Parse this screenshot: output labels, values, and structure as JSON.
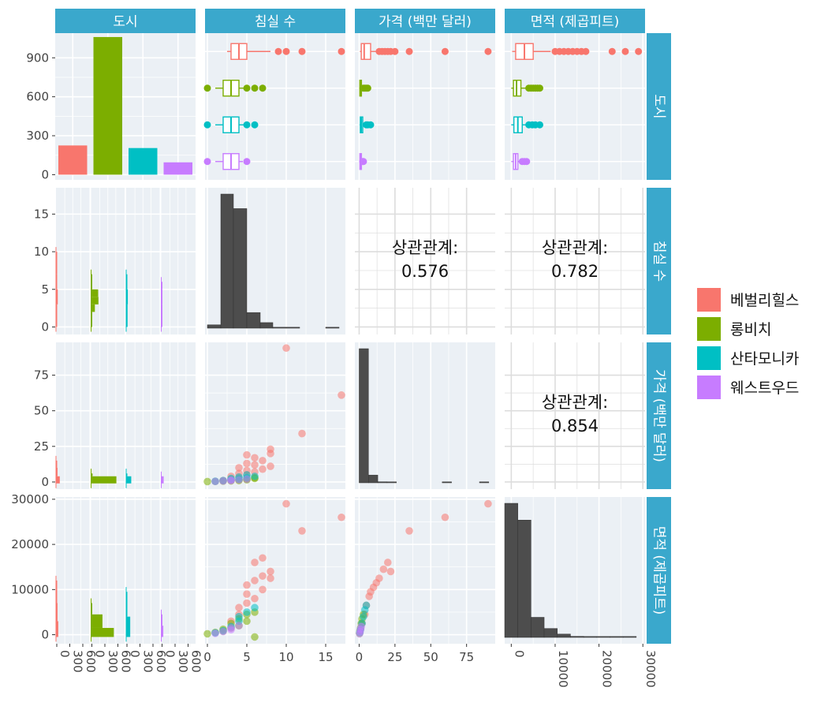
{
  "chart_data": {
    "type": "scatter",
    "variables": [
      "도시",
      "침실 수",
      "가격 (백만 달러)",
      "면적 (제곱피트)"
    ],
    "cities": [
      "베벌리힐스",
      "롱비치",
      "산타모니카",
      "웨스트우드"
    ],
    "colors": {
      "베벌리힐스": "#F8766D",
      "롱비치": "#7CAE00",
      "산타모니카": "#00BFC4",
      "웨스트우드": "#C77CFF"
    },
    "city_counts": [
      225,
      1060,
      205,
      95
    ],
    "city_count_ticks": [
      0,
      300,
      600,
      900
    ],
    "bottom_city_ticks": [
      "0",
      "300",
      "600"
    ],
    "correlations": [
      {
        "row": "침실 수",
        "col": "가격 (백만 달러)",
        "label": "상관관계:",
        "value": "0.576"
      },
      {
        "row": "침실 수",
        "col": "면적 (제곱피트)",
        "label": "상관관계:",
        "value": "0.782"
      },
      {
        "row": "가격 (백만 달러)",
        "col": "면적 (제곱피트)",
        "label": "상관관계:",
        "value": "0.854"
      }
    ],
    "axis_ticks": {
      "bedrooms": [
        0,
        5,
        10,
        15
      ],
      "bedrooms_y": [
        0,
        5,
        10,
        15
      ],
      "price": [
        0,
        25,
        50,
        75
      ],
      "price_y": [
        0,
        25,
        50,
        75
      ],
      "area": [
        0,
        10000,
        20000,
        30000
      ],
      "area_y": [
        0,
        10000,
        20000,
        30000
      ]
    },
    "bedroom_hist": [
      {
        "x0": 0,
        "x1": 1.7,
        "count": 30
      },
      {
        "x0": 1.7,
        "x1": 3.3,
        "count": 1200
      },
      {
        "x0": 3.3,
        "x1": 5.0,
        "count": 1070
      },
      {
        "x0": 5.0,
        "x1": 6.7,
        "count": 140
      },
      {
        "x0": 6.7,
        "x1": 8.3,
        "count": 50
      },
      {
        "x0": 8.3,
        "x1": 10.0,
        "count": 8
      },
      {
        "x0": 10.0,
        "x1": 11.7,
        "count": 3
      },
      {
        "x0": 15.0,
        "x1": 16.7,
        "count": 2
      }
    ],
    "price_hist": [
      {
        "x0": 0,
        "x1": 6.5,
        "count": 1560
      },
      {
        "x0": 6.5,
        "x1": 13,
        "count": 90
      },
      {
        "x0": 13,
        "x1": 19.5,
        "count": 12
      },
      {
        "x0": 19.5,
        "x1": 26,
        "count": 4
      },
      {
        "x0": 58,
        "x1": 64.5,
        "count": 2
      },
      {
        "x0": 84,
        "x1": 90.5,
        "count": 1
      }
    ],
    "area_hist": [
      {
        "x0": -1500,
        "x1": 1500,
        "count": 1200
      },
      {
        "x0": 1500,
        "x1": 4500,
        "count": 1050
      },
      {
        "x0": 4500,
        "x1": 7500,
        "count": 180
      },
      {
        "x0": 7500,
        "x1": 10500,
        "count": 80
      },
      {
        "x0": 10500,
        "x1": 13500,
        "count": 30
      },
      {
        "x0": 13500,
        "x1": 16500,
        "count": 10
      },
      {
        "x0": 16500,
        "x1": 19500,
        "count": 5
      },
      {
        "x0": 19500,
        "x1": 22500,
        "count": 3
      },
      {
        "x0": 22500,
        "x1": 25500,
        "count": 2
      },
      {
        "x0": 25500,
        "x1": 28500,
        "count": 2
      }
    ],
    "boxplots": {
      "bedrooms": [
        {
          "city": "베벌리힐스",
          "min": 2.5,
          "q1": 3,
          "median": 4,
          "q3": 5,
          "max": 8,
          "outliers": [
            9,
            10,
            12,
            17
          ]
        },
        {
          "city": "롱비치",
          "min": 1,
          "q1": 2,
          "median": 3,
          "q3": 4,
          "max": 5,
          "outliers": [
            0,
            5,
            6,
            7
          ]
        },
        {
          "city": "산타모니카",
          "min": 1,
          "q1": 2,
          "median": 3,
          "q3": 4,
          "max": 5,
          "outliers": [
            0,
            5,
            6
          ]
        },
        {
          "city": "웨스트우드",
          "min": 1,
          "q1": 2,
          "median": 3,
          "q3": 4,
          "max": 4.5,
          "outliers": [
            0,
            5
          ]
        }
      ],
      "price": [
        {
          "city": "베벌리힐스",
          "min": 0.5,
          "q1": 1.5,
          "median": 3.5,
          "q3": 8,
          "max": 12,
          "outliers": [
            14,
            16,
            18,
            20,
            22,
            25,
            35,
            60,
            90
          ]
        },
        {
          "city": "롱비치",
          "min": 0.2,
          "q1": 0.5,
          "median": 0.8,
          "q3": 1.5,
          "max": 2.5,
          "outliers": [
            3,
            4,
            5,
            6
          ]
        },
        {
          "city": "산타모니카",
          "min": 0.3,
          "q1": 0.8,
          "median": 1.5,
          "q3": 2.5,
          "max": 4,
          "outliers": [
            5,
            6,
            8
          ]
        },
        {
          "city": "웨스트우드",
          "min": 0.2,
          "q1": 0.5,
          "median": 1,
          "q3": 1.5,
          "max": 2,
          "outliers": [
            2.5,
            3
          ]
        }
      ],
      "area": [
        {
          "city": "베벌리힐스",
          "min": 200,
          "q1": 1000,
          "median": 3000,
          "q3": 5000,
          "max": 9000,
          "outliers": [
            10000,
            11000,
            12000,
            13000,
            14000,
            15000,
            16000,
            17000,
            23000,
            26000,
            29000
          ]
        },
        {
          "city": "롱비치",
          "min": 0,
          "q1": 500,
          "median": 1200,
          "q3": 2200,
          "max": 3500,
          "outliers": [
            4000,
            4500,
            5000,
            5500,
            6000,
            6500
          ]
        },
        {
          "city": "산타모니카",
          "min": 0,
          "q1": 600,
          "median": 1500,
          "q3": 2500,
          "max": 3500,
          "outliers": [
            4000,
            4800,
            5500,
            6500
          ]
        },
        {
          "city": "웨스트우드",
          "min": 0,
          "q1": 500,
          "median": 1000,
          "q3": 1500,
          "max": 2000,
          "outliers": [
            2500,
            3000,
            3500
          ]
        }
      ]
    },
    "faceted_hist": {
      "bedrooms": [
        {
          "city": "베벌리힐스",
          "bins": [
            {
              "y0": 0,
              "y1": 3,
              "count": 35
            },
            {
              "y0": 3,
              "y1": 5,
              "count": 70
            },
            {
              "y0": 5,
              "y1": 7,
              "count": 45
            },
            {
              "y0": 7,
              "y1": 10,
              "count": 12
            }
          ]
        },
        {
          "city": "롱비치",
          "bins": [
            {
              "y0": 0,
              "y1": 2,
              "count": 25
            },
            {
              "y0": 2,
              "y1": 3,
              "count": 150
            },
            {
              "y0": 3,
              "y1": 4,
              "count": 290
            },
            {
              "y0": 4,
              "y1": 5,
              "count": 280
            },
            {
              "y0": 5,
              "y1": 7,
              "count": 25
            }
          ]
        },
        {
          "city": "산타모니카",
          "bins": [
            {
              "y0": 0,
              "y1": 3,
              "count": 55
            },
            {
              "y0": 3,
              "y1": 5,
              "count": 65
            },
            {
              "y0": 5,
              "y1": 7,
              "count": 20
            }
          ]
        },
        {
          "city": "웨스트우드",
          "bins": [
            {
              "y0": 0,
              "y1": 3,
              "count": 25
            },
            {
              "y0": 3,
              "y1": 5,
              "count": 30
            },
            {
              "y0": 5,
              "y1": 6,
              "count": 5
            }
          ]
        }
      ],
      "price": [
        {
          "city": "베벌리힐스",
          "bins": [
            {
              "y0": -1,
              "y1": 4,
              "count": 150
            },
            {
              "y0": 4,
              "y1": 10,
              "count": 60
            },
            {
              "y0": 10,
              "y1": 15,
              "count": 25
            }
          ]
        },
        {
          "city": "롱비치",
          "bins": [
            {
              "y0": -1,
              "y1": 4,
              "count": 1000
            },
            {
              "y0": 4,
              "y1": 6,
              "count": 60
            }
          ]
        },
        {
          "city": "산타모니카",
          "bins": [
            {
              "y0": -1,
              "y1": 4,
              "count": 200
            },
            {
              "y0": 4,
              "y1": 6,
              "count": 30
            }
          ]
        },
        {
          "city": "웨스트우드",
          "bins": [
            {
              "y0": -1,
              "y1": 4,
              "count": 95
            }
          ]
        }
      ],
      "area": [
        {
          "city": "베벌리힐스",
          "bins": [
            {
              "y0": -500,
              "y1": 3000,
              "count": 90
            },
            {
              "y0": 3000,
              "y1": 7000,
              "count": 60
            },
            {
              "y0": 7000,
              "y1": 12000,
              "count": 25
            }
          ]
        },
        {
          "city": "롱비치",
          "bins": [
            {
              "y0": -500,
              "y1": 1500,
              "count": 900
            },
            {
              "y0": 1500,
              "y1": 4500,
              "count": 450
            },
            {
              "y0": 4500,
              "y1": 7000,
              "count": 40
            }
          ]
        },
        {
          "city": "산타모니카",
          "bins": [
            {
              "y0": -500,
              "y1": 4000,
              "count": 160
            },
            {
              "y0": 4000,
              "y1": 9500,
              "count": 30
            }
          ]
        },
        {
          "city": "웨스트우드",
          "bins": [
            {
              "y0": -500,
              "y1": 2000,
              "count": 80
            },
            {
              "y0": 2000,
              "y1": 4500,
              "count": 20
            }
          ]
        }
      ]
    },
    "scatter_bed_price": [
      {
        "city": "베벌리힐스",
        "points": [
          [
            2,
            1
          ],
          [
            3,
            2
          ],
          [
            3,
            4
          ],
          [
            4,
            3
          ],
          [
            4,
            6
          ],
          [
            4,
            10
          ],
          [
            5,
            5
          ],
          [
            5,
            8
          ],
          [
            5,
            13
          ],
          [
            5,
            19
          ],
          [
            6,
            7
          ],
          [
            6,
            12
          ],
          [
            6,
            17
          ],
          [
            7,
            9
          ],
          [
            7,
            15
          ],
          [
            8,
            23
          ],
          [
            8,
            20
          ],
          [
            8,
            11
          ],
          [
            10,
            94
          ],
          [
            12,
            34
          ],
          [
            17,
            61
          ]
        ]
      },
      {
        "city": "롱비치",
        "points": [
          [
            0,
            0.3
          ],
          [
            1,
            0.4
          ],
          [
            2,
            0.6
          ],
          [
            3,
            0.8
          ],
          [
            3,
            1.2
          ],
          [
            4,
            1
          ],
          [
            4,
            1.6
          ],
          [
            5,
            1.5
          ],
          [
            5,
            2
          ],
          [
            6,
            2.5
          ],
          [
            6,
            3
          ]
        ]
      },
      {
        "city": "산타모니카",
        "points": [
          [
            1,
            0.5
          ],
          [
            2,
            1
          ],
          [
            3,
            1.5
          ],
          [
            3,
            2.5
          ],
          [
            4,
            2
          ],
          [
            4,
            3.5
          ],
          [
            5,
            3
          ],
          [
            5,
            5
          ],
          [
            6,
            4
          ]
        ]
      },
      {
        "city": "웨스트우드",
        "points": [
          [
            1,
            0.4
          ],
          [
            2,
            0.7
          ],
          [
            3,
            1
          ],
          [
            3,
            1.3
          ],
          [
            4,
            1.5
          ],
          [
            5,
            2
          ]
        ]
      }
    ],
    "scatter_bed_area": [
      {
        "city": "베벌리힐스",
        "points": [
          [
            3,
            3000
          ],
          [
            4,
            4500
          ],
          [
            4,
            6000
          ],
          [
            5,
            7000
          ],
          [
            5,
            9000
          ],
          [
            5,
            11000
          ],
          [
            6,
            8000
          ],
          [
            6,
            12000
          ],
          [
            6,
            16000
          ],
          [
            7,
            10000
          ],
          [
            7,
            13000
          ],
          [
            7,
            17000
          ],
          [
            8,
            12500
          ],
          [
            8,
            14000
          ],
          [
            10,
            29000
          ],
          [
            12,
            23000
          ],
          [
            17,
            26000
          ]
        ]
      },
      {
        "city": "롱비치",
        "points": [
          [
            0,
            200
          ],
          [
            1,
            500
          ],
          [
            2,
            800
          ],
          [
            2,
            1200
          ],
          [
            3,
            1500
          ],
          [
            3,
            2500
          ],
          [
            4,
            2000
          ],
          [
            4,
            3500
          ],
          [
            5,
            3000
          ],
          [
            5,
            4500
          ],
          [
            6,
            5000
          ],
          [
            6,
            -500
          ]
        ]
      },
      {
        "city": "산타모니카",
        "points": [
          [
            1,
            400
          ],
          [
            2,
            900
          ],
          [
            3,
            1800
          ],
          [
            4,
            3000
          ],
          [
            4,
            4000
          ],
          [
            5,
            5000
          ],
          [
            6,
            6000
          ]
        ]
      },
      {
        "city": "웨스트우드",
        "points": [
          [
            1,
            300
          ],
          [
            2,
            700
          ],
          [
            3,
            1100
          ],
          [
            3,
            1500
          ],
          [
            4,
            2000
          ]
        ]
      }
    ],
    "scatter_price_area": [
      {
        "city": "베벌리힐스",
        "points": [
          [
            2,
            2500
          ],
          [
            4,
            4500
          ],
          [
            5,
            6500
          ],
          [
            7,
            8500
          ],
          [
            8,
            9500
          ],
          [
            10,
            10500
          ],
          [
            12,
            11500
          ],
          [
            14,
            12500
          ],
          [
            17,
            14500
          ],
          [
            20,
            16000
          ],
          [
            22,
            14000
          ],
          [
            35,
            23000
          ],
          [
            60,
            26000
          ],
          [
            90,
            29000
          ]
        ]
      },
      {
        "city": "롱비치",
        "points": [
          [
            0.3,
            300
          ],
          [
            0.6,
            900
          ],
          [
            1,
            1500
          ],
          [
            1.5,
            2500
          ],
          [
            2,
            3500
          ],
          [
            3,
            4500
          ]
        ]
      },
      {
        "city": "산타모니카",
        "points": [
          [
            0.5,
            500
          ],
          [
            1,
            1200
          ],
          [
            2,
            2500
          ],
          [
            3,
            4000
          ],
          [
            4,
            5500
          ],
          [
            5,
            6500
          ]
        ]
      },
      {
        "city": "웨스트우드",
        "points": [
          [
            0.3,
            200
          ],
          [
            0.7,
            700
          ],
          [
            1,
            1200
          ],
          [
            1.5,
            1800
          ]
        ]
      }
    ]
  }
}
